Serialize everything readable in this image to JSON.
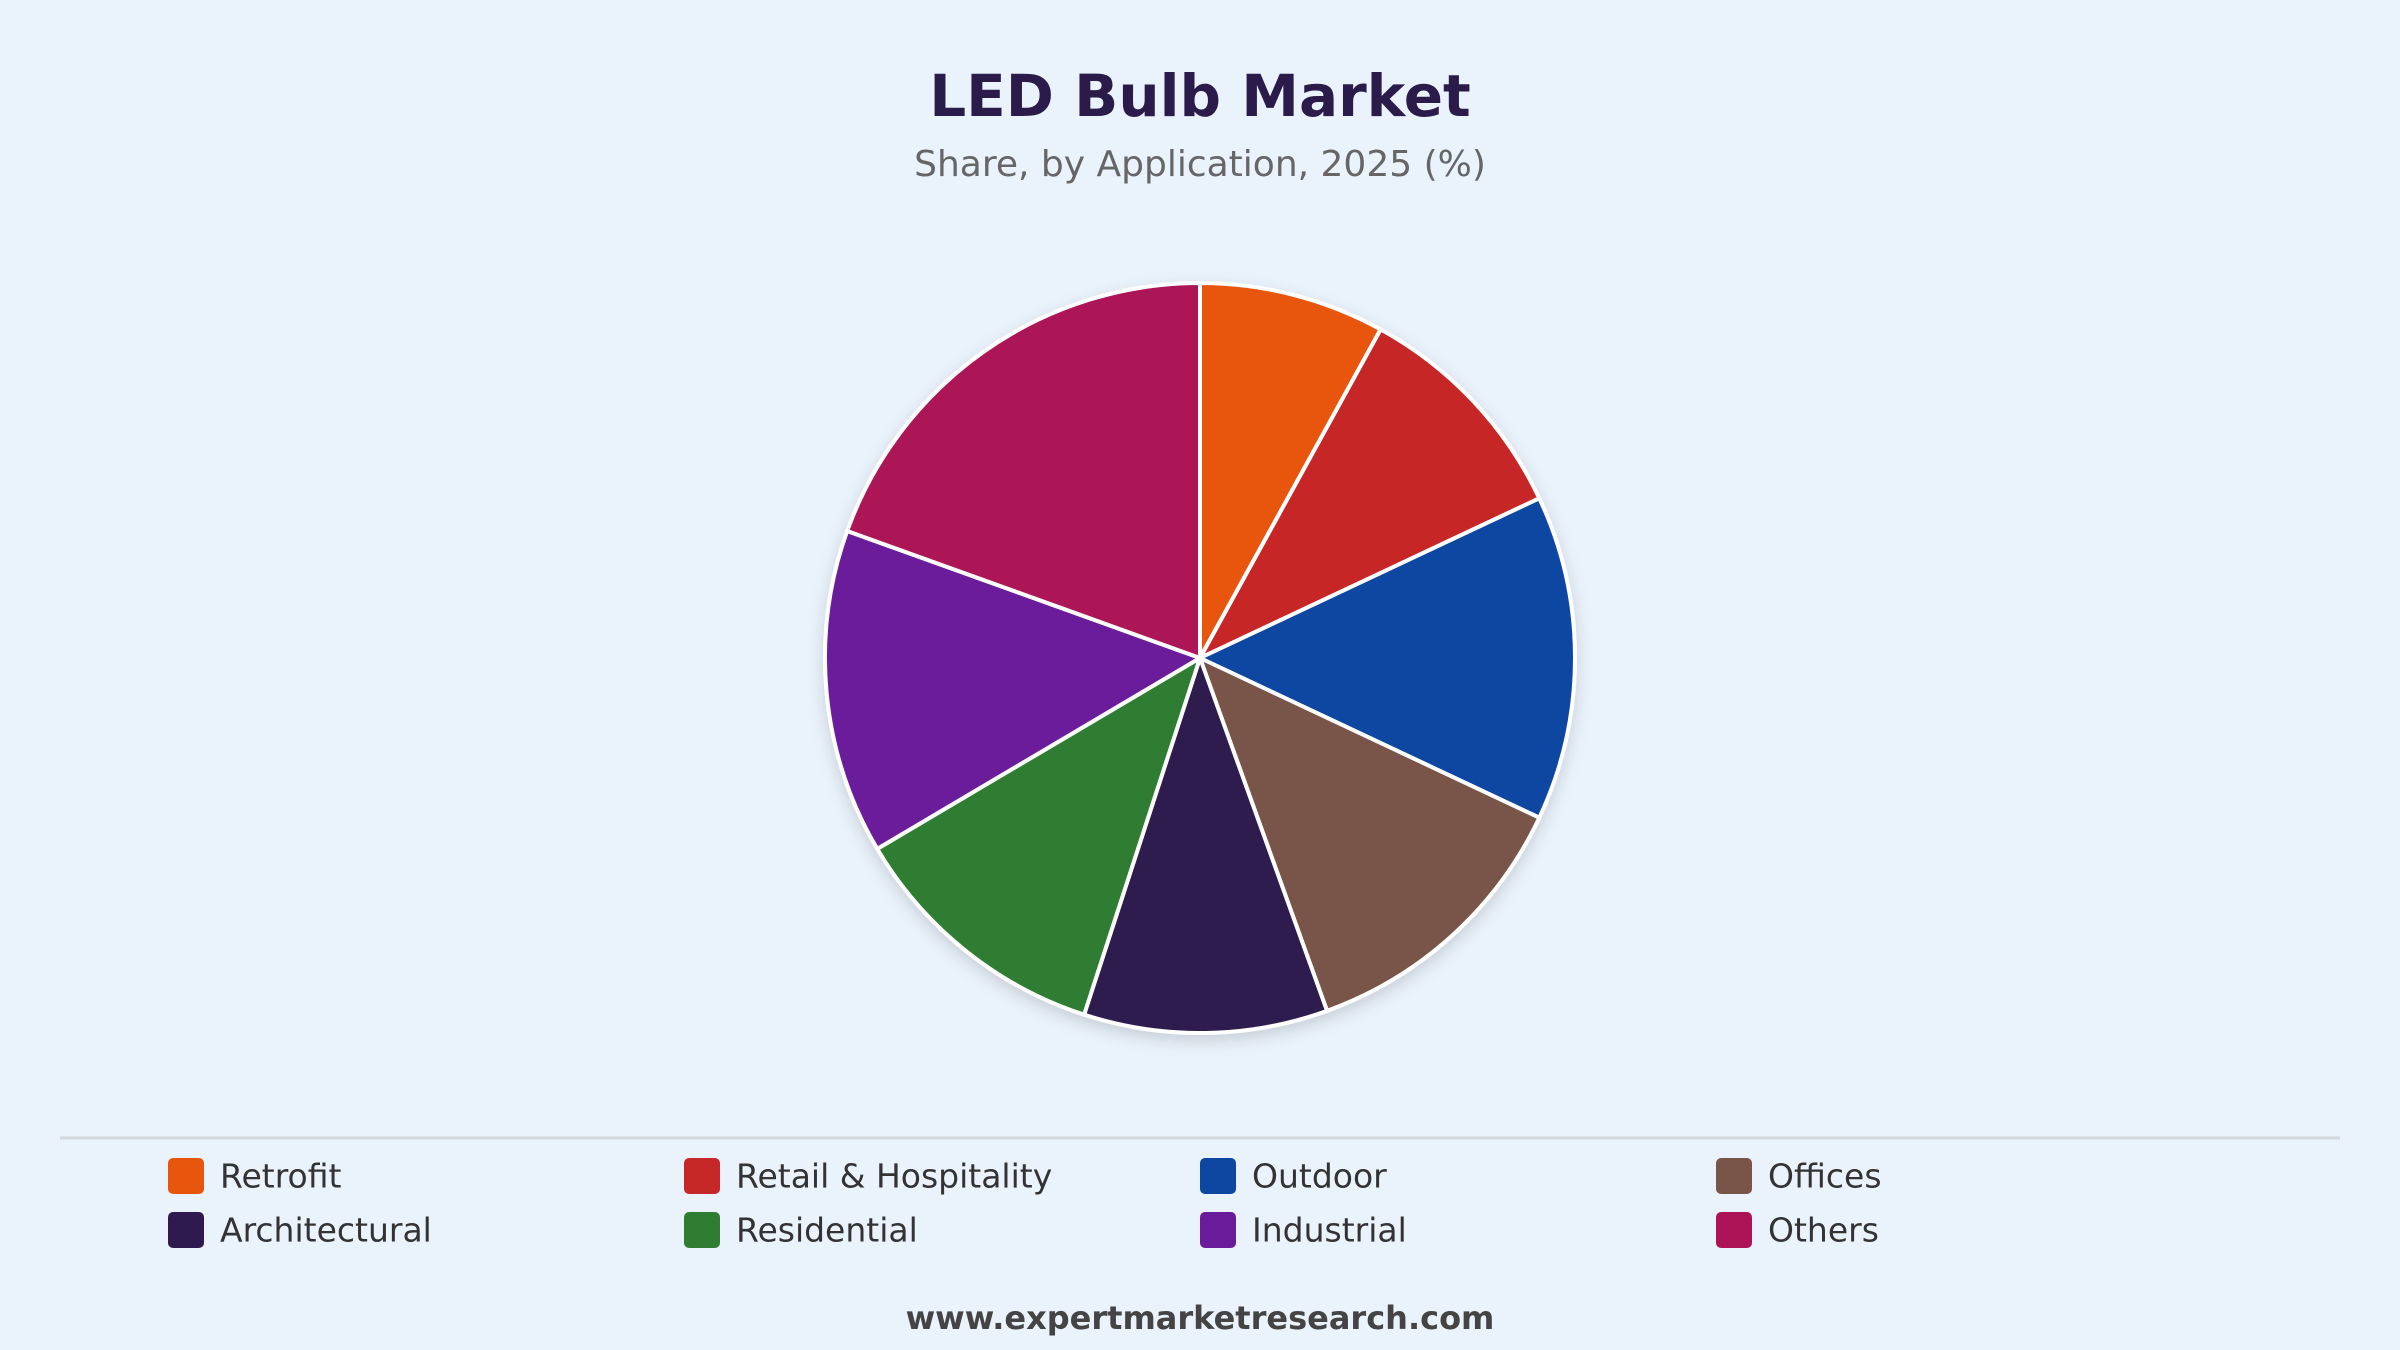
{
  "chart_data": {
    "type": "pie",
    "title": "LED Bulb Market",
    "subtitle": "Share, by Application, 2025 (%)",
    "categories": [
      "Retrofit",
      "Retail & Hospitality",
      "Outdoor",
      "Offices",
      "Architectural",
      "Residential",
      "Industrial",
      "Others"
    ],
    "values": [
      8,
      10,
      14,
      12.5,
      10.5,
      11.5,
      14,
      19.5
    ],
    "colors": [
      "#e8560e",
      "#c62828",
      "#0d47a1",
      "#795548",
      "#2e1a4f",
      "#2e7d32",
      "#6a1b9a",
      "#ad1457"
    ],
    "legend": "bottom",
    "source": "www.expertmarketresearch.com"
  }
}
